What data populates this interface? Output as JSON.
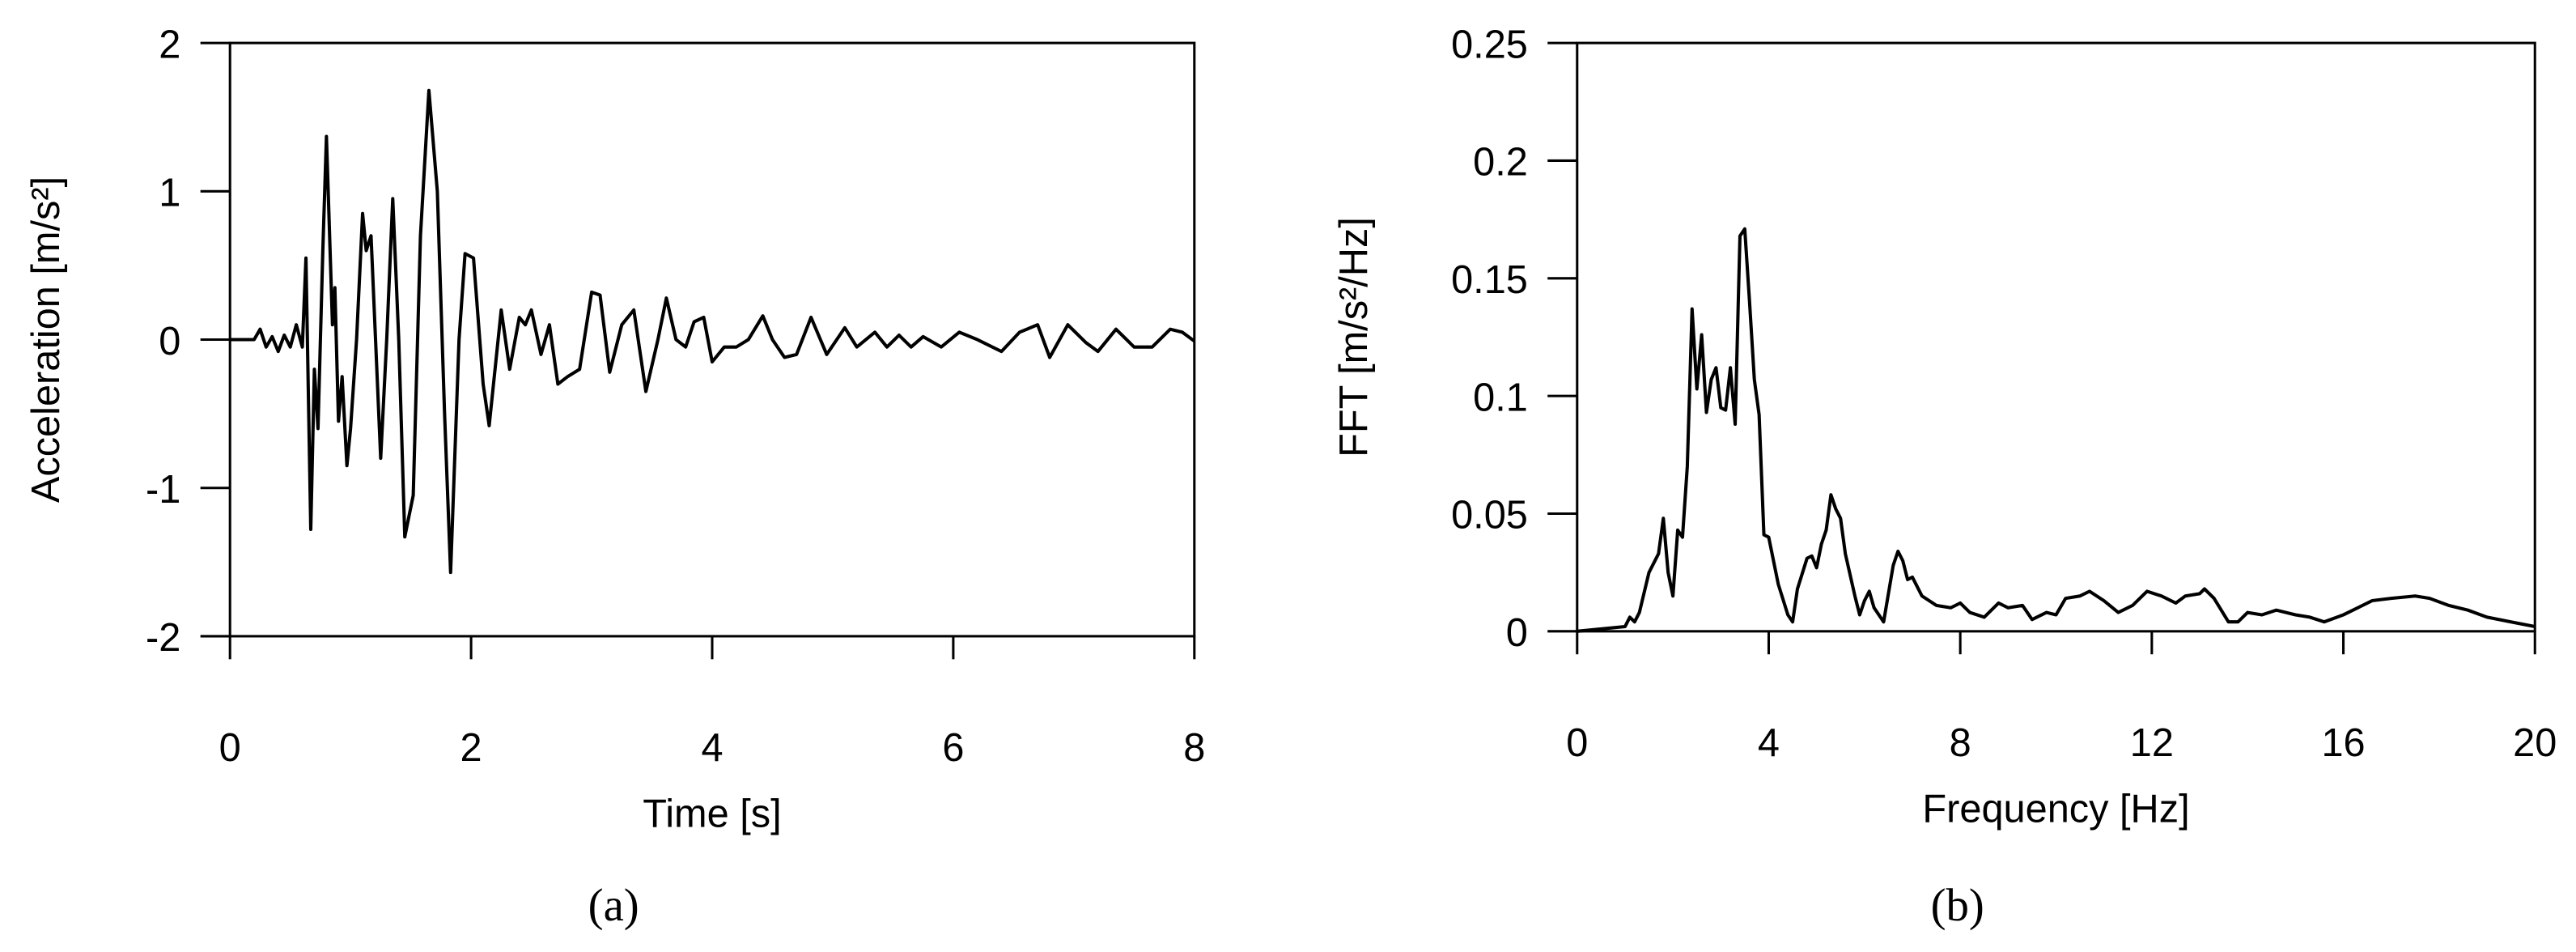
{
  "chart_data": [
    {
      "type": "line",
      "xlabel": "Time [s]",
      "ylabel": "Acceleration [m/s²]",
      "caption": "(a)",
      "color": "#000000",
      "x": [
        0,
        0.1,
        0.2,
        0.25,
        0.3,
        0.35,
        0.4,
        0.45,
        0.5,
        0.55,
        0.6,
        0.63,
        0.67,
        0.7,
        0.73,
        0.77,
        0.8,
        0.85,
        0.87,
        0.9,
        0.93,
        0.97,
        1.0,
        1.05,
        1.1,
        1.13,
        1.17,
        1.25,
        1.3,
        1.35,
        1.4,
        1.45,
        1.52,
        1.58,
        1.65,
        1.72,
        1.78,
        1.83,
        1.9,
        1.95,
        2.02,
        2.1,
        2.15,
        2.25,
        2.32,
        2.4,
        2.45,
        2.5,
        2.58,
        2.65,
        2.72,
        2.8,
        2.9,
        3.0,
        3.07,
        3.15,
        3.25,
        3.35,
        3.45,
        3.55,
        3.62,
        3.7,
        3.78,
        3.85,
        3.93,
        4.0,
        4.1,
        4.2,
        4.3,
        4.42,
        4.5,
        4.6,
        4.7,
        4.82,
        4.95,
        5.1,
        5.2,
        5.35,
        5.45,
        5.55,
        5.65,
        5.75,
        5.9,
        6.05,
        6.2,
        6.4,
        6.55,
        6.7,
        6.8,
        6.95,
        7.1,
        7.2,
        7.35,
        7.5,
        7.65,
        7.8,
        7.9,
        8.0
      ],
      "values": [
        0,
        0,
        0,
        0.07,
        -0.05,
        0.02,
        -0.08,
        0.03,
        -0.05,
        0.1,
        -0.05,
        0.55,
        -1.28,
        -0.2,
        -0.6,
        0.6,
        1.37,
        0.1,
        0.35,
        -0.55,
        -0.25,
        -0.85,
        -0.6,
        0,
        0.85,
        0.6,
        0.7,
        -0.8,
        0,
        0.95,
        0,
        -1.33,
        -1.05,
        0.7,
        1.68,
        1.0,
        -0.5,
        -1.57,
        0,
        0.58,
        0.55,
        -0.3,
        -0.58,
        0.2,
        -0.2,
        0.15,
        0.1,
        0.2,
        -0.1,
        0.1,
        -0.3,
        -0.25,
        -0.2,
        0.32,
        0.3,
        -0.22,
        0.1,
        0.2,
        -0.35,
        0,
        0.28,
        0,
        -0.05,
        0.12,
        0.15,
        -0.15,
        -0.05,
        -0.05,
        0,
        0.16,
        0,
        -0.12,
        -0.1,
        0.15,
        -0.1,
        0.08,
        -0.05,
        0.05,
        -0.05,
        0.03,
        -0.05,
        0.02,
        -0.05,
        0.05,
        0,
        -0.08,
        0.05,
        0.1,
        -0.12,
        0.1,
        -0.02,
        -0.08,
        0.07,
        -0.05,
        -0.05,
        0.07,
        0.05,
        -0.01
      ],
      "xlim": [
        0,
        8
      ],
      "ylim": [
        -2,
        2
      ],
      "xticks": [
        0,
        2,
        4,
        6,
        8
      ],
      "yticks": [
        -2,
        -1,
        0,
        1,
        2
      ]
    },
    {
      "type": "line",
      "xlabel": "Frequency [Hz]",
      "ylabel": "FFT [m/s²/Hz]",
      "caption": "(b)",
      "color": "#000000",
      "x": [
        0,
        0.5,
        1,
        1.1,
        1.2,
        1.3,
        1.5,
        1.7,
        1.8,
        1.9,
        2.0,
        2.1,
        2.2,
        2.3,
        2.4,
        2.5,
        2.6,
        2.7,
        2.8,
        2.9,
        3.0,
        3.1,
        3.2,
        3.3,
        3.4,
        3.5,
        3.6,
        3.7,
        3.8,
        3.9,
        4.0,
        4.2,
        4.4,
        4.5,
        4.6,
        4.8,
        4.9,
        5.0,
        5.1,
        5.2,
        5.3,
        5.4,
        5.5,
        5.6,
        5.8,
        5.9,
        6.0,
        6.1,
        6.2,
        6.4,
        6.6,
        6.7,
        6.8,
        6.9,
        7.0,
        7.2,
        7.5,
        7.8,
        8.0,
        8.2,
        8.5,
        8.8,
        9.0,
        9.3,
        9.5,
        9.8,
        10,
        10.2,
        10.5,
        10.7,
        11,
        11.3,
        11.6,
        11.9,
        12.2,
        12.5,
        12.7,
        13,
        13.1,
        13.3,
        13.6,
        13.8,
        14,
        14.3,
        14.6,
        15,
        15.3,
        15.6,
        16,
        16.3,
        16.6,
        17,
        17.5,
        17.8,
        18.2,
        18.6,
        19,
        19.5,
        20
      ],
      "values": [
        0,
        0.001,
        0.002,
        0.006,
        0.004,
        0.008,
        0.025,
        0.033,
        0.048,
        0.025,
        0.015,
        0.043,
        0.04,
        0.07,
        0.137,
        0.103,
        0.126,
        0.093,
        0.107,
        0.112,
        0.095,
        0.094,
        0.112,
        0.088,
        0.168,
        0.171,
        0.14,
        0.107,
        0.092,
        0.041,
        0.04,
        0.02,
        0.007,
        0.004,
        0.018,
        0.031,
        0.032,
        0.027,
        0.037,
        0.043,
        0.058,
        0.052,
        0.048,
        0.033,
        0.015,
        0.007,
        0.013,
        0.017,
        0.01,
        0.004,
        0.028,
        0.034,
        0.03,
        0.022,
        0.023,
        0.015,
        0.011,
        0.01,
        0.012,
        0.008,
        0.006,
        0.012,
        0.01,
        0.011,
        0.005,
        0.008,
        0.007,
        0.014,
        0.015,
        0.017,
        0.013,
        0.008,
        0.011,
        0.017,
        0.015,
        0.012,
        0.015,
        0.016,
        0.018,
        0.014,
        0.004,
        0.004,
        0.008,
        0.007,
        0.009,
        0.007,
        0.006,
        0.004,
        0.007,
        0.01,
        0.013,
        0.014,
        0.015,
        0.014,
        0.011,
        0.009,
        0.006,
        0.004,
        0.002
      ],
      "xlim": [
        0,
        20
      ],
      "ylim": [
        0,
        0.25
      ],
      "xticks": [
        0,
        4,
        8,
        12,
        16,
        20
      ],
      "yticks": [
        0,
        0.05,
        0.1,
        0.15,
        0.2,
        0.25
      ]
    }
  ]
}
